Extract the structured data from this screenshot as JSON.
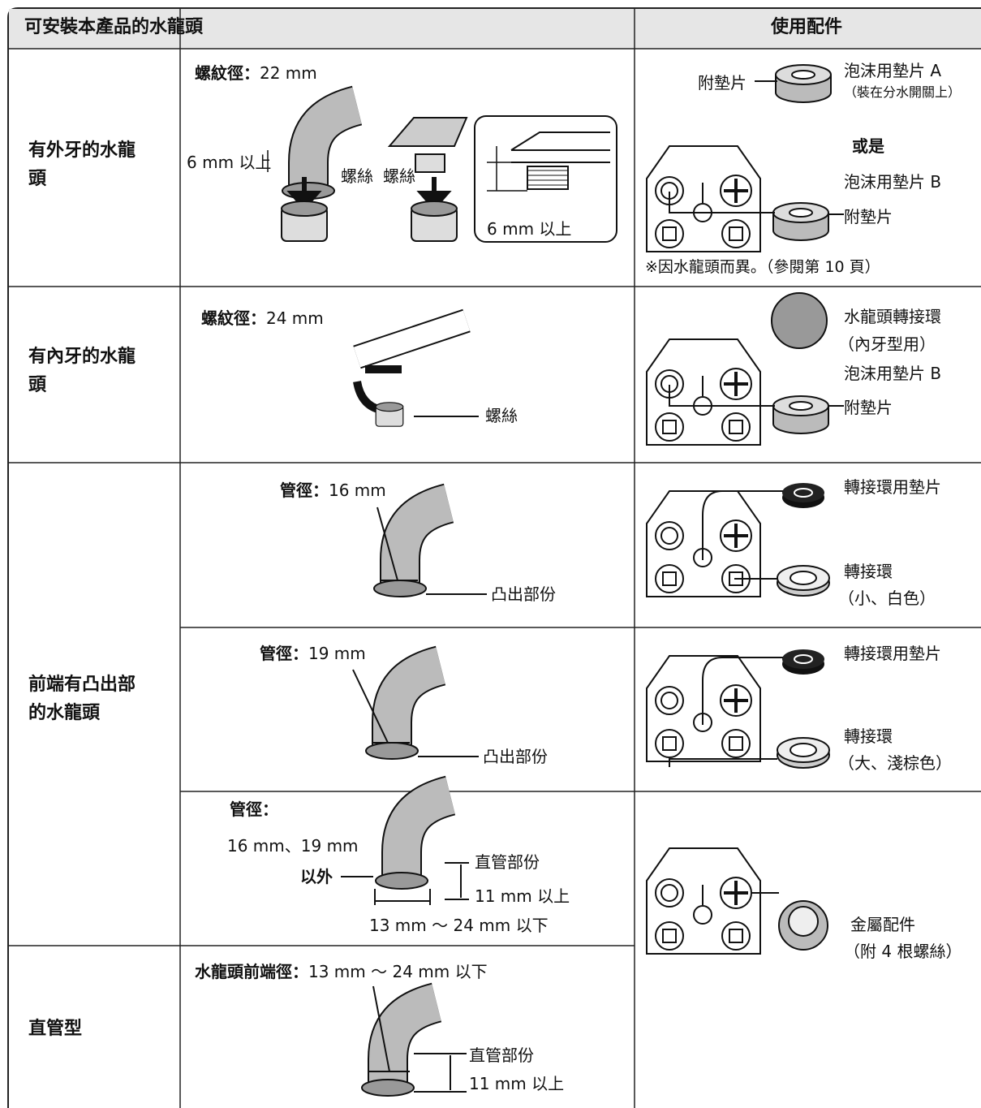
{
  "header": {
    "faucet_column": "可安裝本產品的水龍頭",
    "parts_column": "使用配件"
  },
  "rows": [
    {
      "faucet": "有外牙的水龍頭",
      "spec_label": "螺紋徑：",
      "spec_value": "22 mm",
      "callouts": [
        "6 mm 以上",
        "螺絲",
        "螺絲",
        "6 mm 以上"
      ],
      "parts": [
        "附墊片",
        "泡沫用墊片 A",
        "（裝在分水開關上）",
        "或是",
        "泡沫用墊片 B",
        "附墊片"
      ],
      "note": "※因水龍頭而異。（參閱第 10 頁）"
    },
    {
      "faucet": "有內牙的水龍頭",
      "spec_label": "螺紋徑：",
      "spec_value": "24 mm",
      "callouts": [
        "螺絲"
      ],
      "parts": [
        "水龍頭轉接環",
        "（內牙型用）",
        "泡沫用墊片 B",
        "附墊片"
      ]
    },
    {
      "faucet": "前端有凸出部的水龍頭",
      "variants": [
        {
          "spec_label": "管徑：",
          "spec_value": "16 mm",
          "callouts": [
            "凸出部份"
          ],
          "parts": [
            "轉接環用墊片",
            "轉接環",
            "（小、白色）"
          ]
        },
        {
          "spec_label": "管徑：",
          "spec_value": "19 mm",
          "callouts": [
            "凸出部份"
          ],
          "parts": [
            "轉接環用墊片",
            "轉接環",
            "（大、淺棕色）"
          ]
        },
        {
          "spec_label": "管徑：",
          "spec_value": "16 mm、19 mm",
          "spec_suffix": "以外",
          "callouts": [
            "直管部份",
            "11 mm 以上",
            "13 mm ～ 24 mm 以下"
          ]
        }
      ]
    },
    {
      "faucet": "直管型",
      "spec_label": "水龍頭前端徑：",
      "spec_value": "13 mm ～ 24 mm 以下",
      "callouts": [
        "直管部份",
        "11 mm 以上"
      ]
    }
  ],
  "shared_parts": [
    "金屬配件",
    "（附 4 根螺絲）"
  ]
}
